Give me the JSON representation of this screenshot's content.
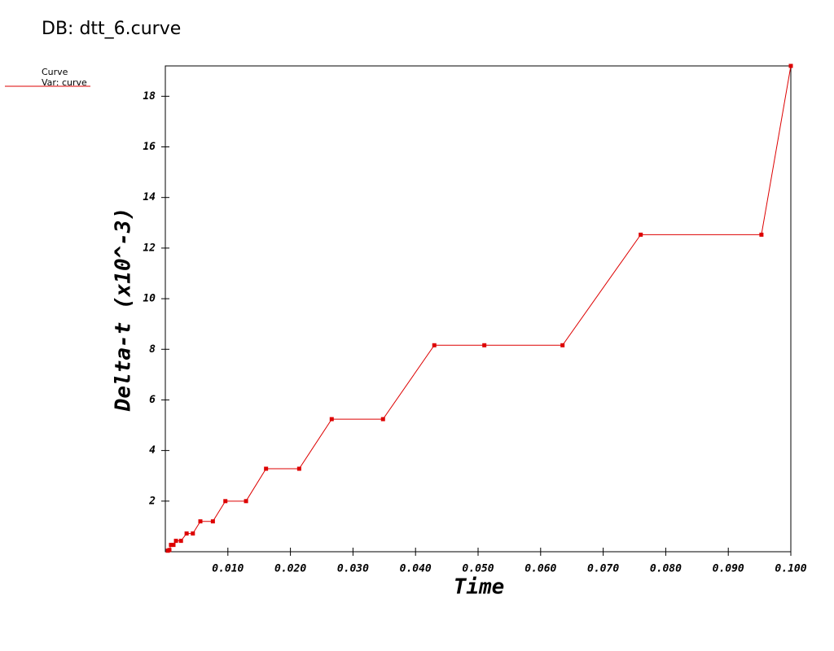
{
  "chart_data": {
    "type": "line",
    "title": "DB: dtt_6.curve",
    "legend_title": "Curve",
    "x_label": "Time",
    "y_label": "Delta-t (x10^-3)",
    "x": [
      0.0004,
      0.00065,
      0.0009,
      0.0013,
      0.0017,
      0.0025,
      0.0034,
      0.0044,
      0.0056,
      0.0076,
      0.0096,
      0.0129,
      0.0161,
      0.0214,
      0.0266,
      0.0348,
      0.043,
      0.051,
      0.0635,
      0.076,
      0.0953,
      0.1
    ],
    "series": [
      {
        "name": "Var: curve",
        "color": "#dd0000",
        "values": [
          0.04,
          0.07,
          0.27,
          0.27,
          0.43,
          0.43,
          0.72,
          0.72,
          1.2,
          1.2,
          2.0,
          2.0,
          3.28,
          3.28,
          5.24,
          5.24,
          8.16,
          8.16,
          8.16,
          12.53,
          12.53,
          19.2
        ]
      }
    ],
    "xlim": [
      0,
      0.1
    ],
    "ylim": [
      0,
      19.2
    ],
    "xticks": [
      {
        "value": 0.01,
        "label": "0.010"
      },
      {
        "value": 0.02,
        "label": "0.020"
      },
      {
        "value": 0.03,
        "label": "0.030"
      },
      {
        "value": 0.04,
        "label": "0.040"
      },
      {
        "value": 0.05,
        "label": "0.050"
      },
      {
        "value": 0.06,
        "label": "0.060"
      },
      {
        "value": 0.07,
        "label": "0.070"
      },
      {
        "value": 0.08,
        "label": "0.080"
      },
      {
        "value": 0.09,
        "label": "0.090"
      },
      {
        "value": 0.1,
        "label": "0.100"
      }
    ],
    "yticks": [
      2,
      4,
      6,
      8,
      10,
      12,
      14,
      16,
      18
    ],
    "grid": false,
    "markers": true
  }
}
